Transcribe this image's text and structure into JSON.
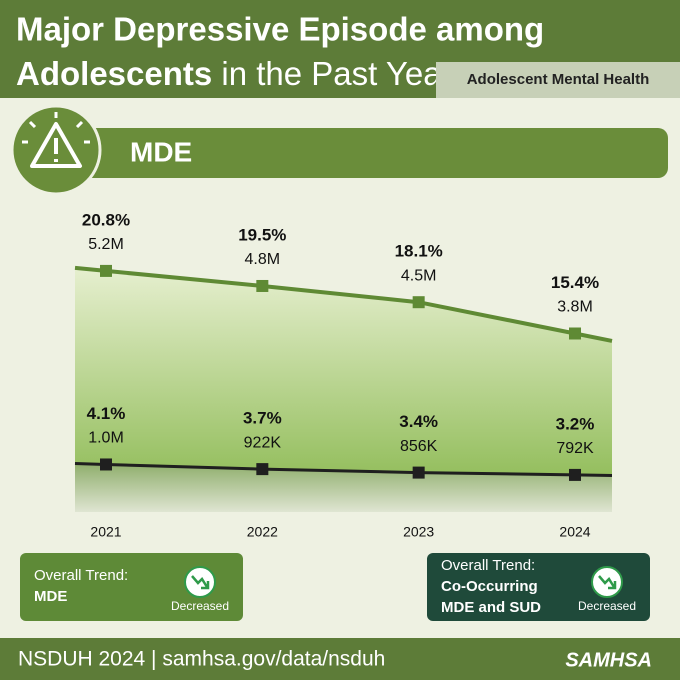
{
  "header": {
    "title_line1": "Major Depressive Episode among",
    "title_bold": "Adolescents",
    "title_rest": " in the Past Year",
    "tag": "Adolescent Mental Health"
  },
  "banner": {
    "label": "MDE"
  },
  "chart_data": {
    "type": "area",
    "categories": [
      "2021",
      "2022",
      "2023",
      "2024"
    ],
    "ylim": [
      0,
      22
    ],
    "series": [
      {
        "color": "#5f8a34",
        "values": [
          20.8,
          19.5,
          18.1,
          15.4
        ],
        "value_labels": [
          "20.8%",
          "19.5%",
          "18.1%",
          "15.4%"
        ],
        "count_labels": [
          "5.2M",
          "4.8M",
          "4.5M",
          "3.8M"
        ]
      },
      {
        "color": "#1f1f1f",
        "values": [
          4.1,
          3.7,
          3.4,
          3.2
        ],
        "value_labels": [
          "4.1%",
          "3.7%",
          "3.4%",
          "3.2%"
        ],
        "count_labels": [
          "1.0M",
          "922K",
          "856K",
          "792K"
        ]
      }
    ]
  },
  "trends": [
    {
      "label": "Overall Trend:",
      "name_lines": [
        "MDE"
      ],
      "status": "Decreased"
    },
    {
      "label": "Overall Trend:",
      "name_lines": [
        "Co-Occurring",
        "MDE and SUD"
      ],
      "status": "Decreased"
    }
  ],
  "footer": {
    "source": "NSDUH 2024 | samhsa.gov/data/nsduh",
    "logo": "SAMHSA"
  }
}
